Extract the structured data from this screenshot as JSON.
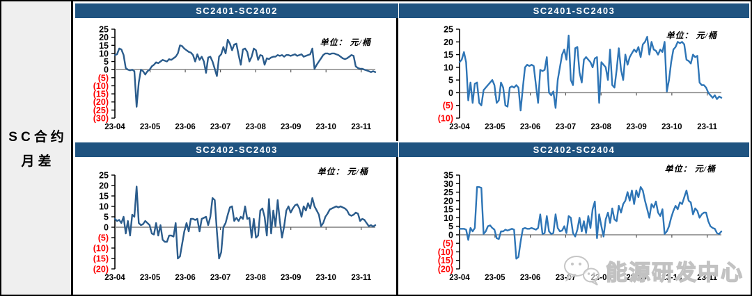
{
  "sidebar": {
    "title_line1": "SC合约",
    "title_line2": "月差"
  },
  "watermark": {
    "text": "能源研发中心",
    "icon": "wechat-icon"
  },
  "colors": {
    "header_bg": "#1f5380",
    "left_chart_line": "#2b5c8c",
    "right_chart_line": "#2e75b6",
    "negative_tick": "#ff0000",
    "zero_line": "#7f7f7f",
    "sidebar_bg": "#efefef"
  },
  "chart_data": [
    {
      "type": "line",
      "title": "SC2401-SC2402",
      "unit": "单位： 元/桶",
      "x_labels": [
        "23-04",
        "23-05",
        "23-06",
        "23-07",
        "23-08",
        "23-09",
        "23-10",
        "23-11"
      ],
      "x_span_months": 7.4,
      "ylim": [
        -30,
        25
      ],
      "y_tick_step": 5,
      "y_tick_labels": [
        "25",
        "20",
        "15",
        "10",
        "5",
        "0",
        "(5)",
        "(10)",
        "(15)",
        "(20)",
        "(25)",
        "(30)"
      ],
      "line_color": "#2b5c8c",
      "values": [
        9,
        9.5,
        13,
        12.5,
        9,
        1,
        0,
        -0.5,
        0,
        -1,
        -23,
        -8,
        0,
        -1,
        -3,
        -1,
        0,
        2,
        3,
        4.5,
        4,
        5,
        6,
        5.5,
        5,
        6.5,
        6,
        7,
        8,
        10,
        15,
        14.5,
        13,
        12,
        11,
        10.5,
        9,
        5,
        9.5,
        6,
        8,
        5,
        -2,
        7.5,
        8,
        5,
        0.5,
        -4,
        8,
        9.5,
        14,
        10,
        18.5,
        16,
        12,
        15.5,
        16,
        9,
        3,
        12.5,
        13,
        11,
        5,
        8,
        13,
        12,
        6,
        9,
        8.5,
        3,
        7,
        6.5,
        7.5,
        8,
        8,
        9,
        8.5,
        9,
        8,
        9,
        9,
        8.5,
        9,
        9.5,
        8.5,
        9,
        9.5,
        8,
        8.5,
        9,
        9.5,
        13,
        0.5,
        3,
        5,
        7,
        9,
        10,
        10,
        9.5,
        10,
        10,
        9.5,
        9,
        8,
        7,
        6.5,
        7,
        8,
        9,
        8.5,
        2,
        1,
        0.5,
        0.5,
        0,
        -0.5,
        -1,
        -1.5,
        -1,
        -1.5
      ]
    },
    {
      "type": "line",
      "title": "SC2401-SC2403",
      "unit": "单位： 元/桶",
      "x_labels": [
        "23-04",
        "23-05",
        "23-06",
        "23-07",
        "23-08",
        "23-09",
        "23-10",
        "23-11"
      ],
      "x_span_months": 7.4,
      "ylim": [
        -10,
        25
      ],
      "y_tick_step": 5,
      "y_tick_labels": [
        "25",
        "20",
        "15",
        "10",
        "5",
        "0",
        "(5)",
        "(10)"
      ],
      "line_color": "#2e75b6",
      "values": [
        12,
        13,
        16,
        12,
        -3,
        4,
        -4,
        3.5,
        4,
        -4,
        -5,
        1,
        2,
        3,
        4,
        5,
        3,
        -4,
        -3,
        4,
        2,
        -5,
        -5.5,
        2,
        2.5,
        2,
        3,
        2,
        -7,
        2,
        10,
        11,
        10.5,
        11,
        10.5,
        3,
        -4,
        9,
        8.5,
        9,
        14,
        0,
        -1,
        0.5,
        -6,
        5,
        10,
        15,
        17,
        13,
        22.5,
        5,
        3,
        17.5,
        18,
        8,
        4,
        13,
        14,
        13,
        12,
        10,
        13.5,
        14,
        -4,
        12,
        11,
        10,
        5,
        17,
        3,
        2,
        9,
        17.5,
        9,
        5,
        15,
        11,
        14,
        15.5,
        17,
        16,
        18,
        14,
        19,
        20,
        22,
        15,
        20,
        17,
        16.5,
        15,
        17,
        16,
        20,
        0.5,
        5,
        12,
        17,
        18,
        20,
        19.5,
        20,
        19,
        13,
        12.5,
        11.5,
        15,
        14,
        14.5,
        4,
        3,
        3,
        2,
        0,
        -1,
        -2,
        -1,
        -2.5,
        -1.5,
        -2
      ]
    },
    {
      "type": "line",
      "title": "SC2402-SC2403",
      "unit": "单位： 元/桶",
      "x_labels": [
        "23-04",
        "23-05",
        "23-06",
        "23-07",
        "23-08",
        "23-09",
        "23-10",
        "23-11"
      ],
      "x_span_months": 7.4,
      "ylim": [
        -20,
        25
      ],
      "y_tick_step": 5,
      "y_tick_labels": [
        "25",
        "20",
        "15",
        "10",
        "5",
        "0",
        "(5)",
        "(10)",
        "(15)",
        "(20)"
      ],
      "line_color": "#2b5c8c",
      "values": [
        4,
        3,
        3.5,
        2,
        5,
        -3,
        3,
        -4,
        6,
        5,
        19.5,
        2,
        1,
        1.5,
        3,
        2,
        1,
        -3,
        -3.5,
        2,
        -4,
        1,
        -6,
        -7,
        -7,
        -4,
        -4,
        -4.5,
        2,
        -15,
        -14,
        -8,
        -2,
        2,
        -2,
        4,
        4,
        3.5,
        4,
        -2,
        4,
        4.5,
        5,
        1,
        5,
        14,
        13,
        -2,
        -15,
        -12,
        0,
        2,
        6,
        9.5,
        10,
        3,
        4.5,
        3,
        5,
        4,
        10,
        4,
        4.5,
        -5,
        4,
        -5,
        -4,
        8,
        9,
        5,
        -4,
        13.5,
        -3,
        8,
        0.5,
        13,
        3,
        -5,
        0.5,
        8,
        10,
        7,
        9,
        10.5,
        11,
        9,
        5,
        10,
        8,
        11.5,
        9,
        14,
        10,
        8,
        6,
        0.5,
        2,
        5,
        6.5,
        8.5,
        9,
        9.5,
        10,
        9.5,
        10,
        9.5,
        9,
        8,
        6,
        5.5,
        6,
        7,
        6.5,
        3,
        4,
        3.5,
        2,
        0.5,
        1,
        0.3,
        1
      ]
    },
    {
      "type": "line",
      "title": "SC2402-SC2404",
      "unit": "单位： 元/桶",
      "x_labels": [
        "23-04",
        "23-05",
        "23-06",
        "23-07",
        "23-08",
        "23-09",
        "23-10",
        "23-11"
      ],
      "x_span_months": 7.4,
      "ylim": [
        -20,
        35
      ],
      "y_tick_step": 5,
      "y_tick_labels": [
        "35",
        "30",
        "25",
        "20",
        "15",
        "10",
        "5",
        "0",
        "(5)",
        "(10)",
        "(15)",
        "(20)"
      ],
      "line_color": "#2e75b6",
      "values": [
        3.5,
        3.5,
        3.5,
        3,
        -3,
        4,
        2,
        4,
        28,
        28,
        27.5,
        0.5,
        2,
        5,
        5.5,
        4,
        3,
        -2,
        -2.5,
        2,
        2,
        3,
        2.5,
        3,
        3.5,
        3,
        -14,
        -13,
        -4,
        3.5,
        4,
        3.5,
        3.5,
        4,
        3.5,
        3,
        4,
        12,
        0.5,
        1,
        11,
        2,
        0.5,
        1,
        12,
        4,
        2,
        2.5,
        5,
        1,
        11,
        10,
        1,
        -1,
        3,
        10,
        2,
        8,
        1,
        11,
        4,
        15,
        19.5,
        -2,
        12,
        5,
        -1,
        9,
        13,
        7,
        15.5,
        9,
        8,
        17,
        13,
        18,
        20,
        25,
        20,
        26,
        18,
        26,
        22,
        28,
        26,
        20,
        15,
        10,
        18,
        16,
        19.5,
        13,
        11,
        15,
        0.5,
        2,
        5,
        10,
        14,
        17,
        15,
        19,
        18,
        22,
        26,
        20,
        19,
        12,
        15.5,
        14,
        10,
        12,
        13,
        13,
        8,
        5,
        4,
        3.5,
        1,
        0.5,
        2
      ]
    }
  ]
}
